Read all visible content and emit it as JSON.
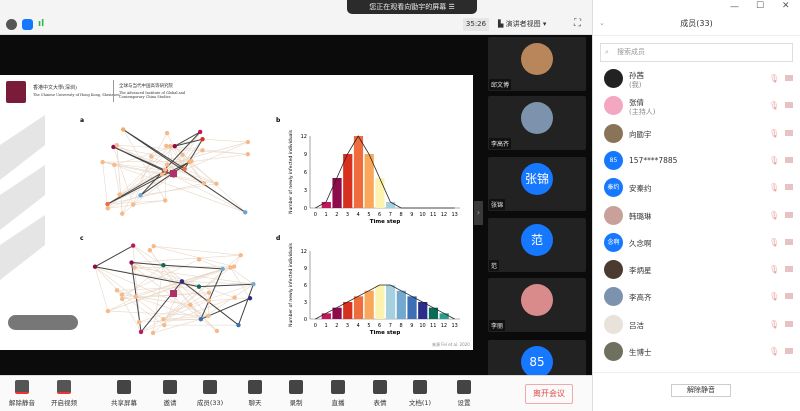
{
  "window": {
    "notice": "您正在观看向勖宇的屏幕",
    "notice_icon": "menu-icon",
    "timer": "35:26",
    "view_mode": "演讲者视图"
  },
  "status_icons": [
    "info-icon",
    "shield-icon",
    "signal-icon"
  ],
  "slide": {
    "university_cn": "香港中文大學(深圳)",
    "university_en": "The Chinese University of Hong Kong, Shenzhen",
    "institute_cn": "全球与当代中国高等研究院",
    "institute_en": "The Advanced Institute of Global and Contemporary China Studies",
    "source": "来源   Fei et al. 2020",
    "panel_labels": [
      "a",
      "b",
      "c",
      "d"
    ]
  },
  "chart_data": [
    {
      "type": "bar",
      "panel": "b",
      "xlabel": "Time step",
      "ylabel": "Number of newly infected individuals",
      "categories": [
        "0",
        "1",
        "2",
        "3",
        "4",
        "5",
        "6",
        "7",
        "8",
        "9",
        "10",
        "11",
        "12",
        "13"
      ],
      "values": [
        0,
        1,
        5,
        9,
        12,
        9,
        5,
        1,
        0,
        0,
        0,
        0,
        0,
        0
      ],
      "yticks": [
        0,
        3,
        6,
        9,
        12
      ],
      "ylim": [
        0,
        12
      ],
      "colors": [
        "#c2185b",
        "#c2185b",
        "#8e0a4a",
        "#d7301f",
        "#ef6c3c",
        "#f9a85b",
        "#fdf3b0",
        "#a6cfe0",
        "#a6cfe0",
        "#a6cfe0",
        "#a6cfe0",
        "#a6cfe0",
        "#a6cfe0",
        "#a6cfe0"
      ]
    },
    {
      "type": "bar",
      "panel": "d",
      "xlabel": "Time step",
      "ylabel": "Number of newly infected individuals",
      "categories": [
        "0",
        "1",
        "2",
        "3",
        "4",
        "5",
        "6",
        "7",
        "8",
        "9",
        "10",
        "11",
        "12",
        "13"
      ],
      "values": [
        0,
        1,
        2,
        3,
        4,
        5,
        6,
        6,
        5,
        4,
        3,
        2,
        1,
        0
      ],
      "yticks": [
        0,
        3,
        6,
        9,
        12
      ],
      "ylim": [
        0,
        12
      ],
      "colors": [
        "#c2185b",
        "#c2185b",
        "#8e0a4a",
        "#d7301f",
        "#ef6c3c",
        "#f9a85b",
        "#fdf3b0",
        "#a6cfe0",
        "#74a9cf",
        "#3c6fb6",
        "#2c2c8c",
        "#0b6b55",
        "#2a9d8f",
        "#2a9d8f"
      ]
    }
  ],
  "thumbnails": [
    {
      "name": "邱文博",
      "initials": "",
      "color": "#b8865a"
    },
    {
      "name": "李高齐",
      "initials": "",
      "color": "#7d93ad"
    },
    {
      "name": "张锦",
      "initials": "张锦",
      "color": "#1677ff"
    },
    {
      "name": "范",
      "initials": "范",
      "color": "#1677ff"
    },
    {
      "name": "李丽",
      "initials": "",
      "color": "#d98b8b"
    },
    {
      "name": "",
      "initials": "85",
      "color": "#1677ff"
    }
  ],
  "toolbar": [
    {
      "label": "解除静音",
      "icon": "mic-muted-icon"
    },
    {
      "label": "开启视频",
      "icon": "video-off-icon"
    },
    {
      "label": "共享屏幕",
      "icon": "share-screen-icon"
    },
    {
      "label": "邀请",
      "icon": "invite-icon"
    },
    {
      "label": "成员(33)",
      "icon": "members-icon"
    },
    {
      "label": "聊天",
      "icon": "chat-icon"
    },
    {
      "label": "录制",
      "icon": "record-icon"
    },
    {
      "label": "直播",
      "icon": "live-icon"
    },
    {
      "label": "表情",
      "icon": "emoji-icon"
    },
    {
      "label": "文档(1)",
      "icon": "document-icon"
    },
    {
      "label": "设置",
      "icon": "gear-icon"
    }
  ],
  "leave_label": "离开会议",
  "panel": {
    "title": "成员(33)",
    "search_placeholder": "搜索成员",
    "unmute_all": "解除静音",
    "members": [
      {
        "name": "孙茜",
        "sub": "(我)",
        "initials": "",
        "color": "#222"
      },
      {
        "name": "张倩",
        "sub": "(主持人)",
        "initials": "",
        "color": "#f4a7c0"
      },
      {
        "name": "向勖宇",
        "sub": "",
        "initials": "",
        "color": "#8a7458"
      },
      {
        "name": "157****7885",
        "sub": "",
        "initials": "85",
        "color": "#1677ff"
      },
      {
        "name": "安秦约",
        "sub": "",
        "initials": "秦约",
        "color": "#1677ff"
      },
      {
        "name": "韩璐琳",
        "sub": "",
        "initials": "",
        "color": "#c9a09a"
      },
      {
        "name": "久念啊",
        "sub": "",
        "initials": "念啊",
        "color": "#1677ff"
      },
      {
        "name": "李炳星",
        "sub": "",
        "initials": "",
        "color": "#4a3a30"
      },
      {
        "name": "李高齐",
        "sub": "",
        "initials": "",
        "color": "#7d93ad"
      },
      {
        "name": "吕洁",
        "sub": "",
        "initials": "",
        "color": "#e8e2da"
      },
      {
        "name": "生博士",
        "sub": "",
        "initials": "",
        "color": "#6f7060"
      }
    ]
  }
}
